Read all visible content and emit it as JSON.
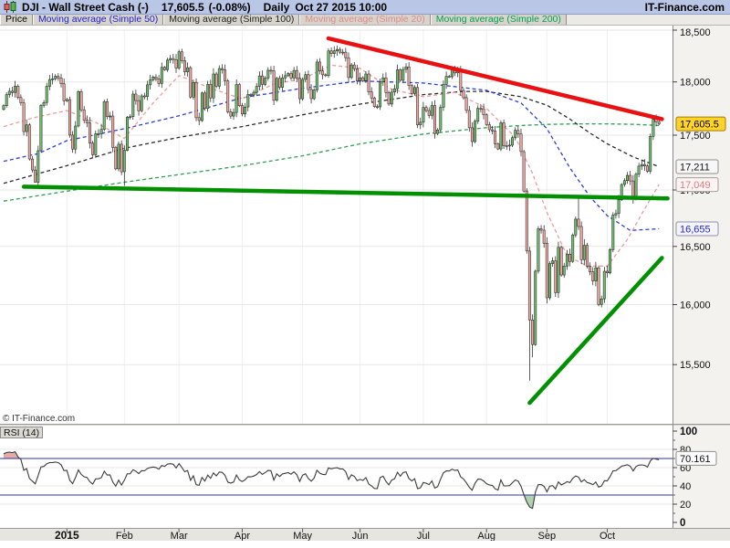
{
  "header": {
    "title": "DJI - Wall Street Cash (-)",
    "price": "17,605.5",
    "change": "(-0.08%)",
    "timeframe": "Daily",
    "datetime": "Oct 27 2015 10:00",
    "brand": "IT-Finance.com"
  },
  "watermark": "© IT-Finance.com",
  "tabs": [
    {
      "label": "Price",
      "color": "#000000"
    },
    {
      "label": "Moving average (Simple 50)",
      "color": "#2222cc"
    },
    {
      "label": "Moving average (Simple 100)",
      "color": "#222222"
    },
    {
      "label": "Moving average (Simple 20)",
      "color": "#e08a8a"
    },
    {
      "label": "Moving average (Simple 200)",
      "color": "#00a050"
    }
  ],
  "price_axis": {
    "tick_labels": [
      "18,500",
      "18,000",
      "17,500",
      "17,000",
      "16,500",
      "16,000",
      "15,500"
    ],
    "tick_values": [
      18500,
      18000,
      17500,
      17000,
      16500,
      16000,
      15500
    ],
    "badges": [
      {
        "label": "17,605.5",
        "value": 17605.5,
        "kind": "last-price",
        "bg": "#ffd42a",
        "border": "#a67c00",
        "text": "#000000"
      },
      {
        "label": "17,211",
        "value": 17211,
        "kind": "ma100",
        "bg": "#f7f7f7",
        "border": "#8f8f8f",
        "text": "#111111"
      },
      {
        "label": "17,049",
        "value": 17049,
        "kind": "ma20",
        "bg": "#fdf4f4",
        "border": "#a89a9a",
        "text": "#dd7d7d"
      },
      {
        "label": "16,655",
        "value": 16655,
        "kind": "ma50",
        "bg": "#f4f4fc",
        "border": "#8f8fa8",
        "text": "#2525cc"
      }
    ]
  },
  "x_axis": {
    "bold_label": "2015"
  },
  "rsi_panel": {
    "label": "RSI (14)",
    "current_label": "70.161",
    "current_value": 70.161,
    "tick_labels": [
      "100",
      "80",
      "60",
      "40",
      "20",
      "0"
    ],
    "tick_values": [
      100,
      80,
      60,
      40,
      20,
      0
    ],
    "overbought": 70,
    "oversold": 30
  },
  "colors": {
    "candle_up": "#6cbf6c",
    "candle_down": "#f2a6a0",
    "candle_outline": "#1a1a1a",
    "grid": "#e7e7e7",
    "vgrid": "#efefef",
    "axis_line": "#8a8a8a",
    "axis_bg": "#f3f2ef",
    "strip_bg": "#e7e5e0",
    "ma20": "#ef9a9a",
    "ma50": "#2b3fd6",
    "ma100": "#2b2b2b",
    "ma200": "#2f9e52",
    "trend_red": "#e81010",
    "trend_green": "#009000",
    "rsi_line": "#3a3a3a",
    "rsi_level": "#2f2fae",
    "rsi_ob_fill": "#e2aba3",
    "rsi_os_fill": "#aed3ae"
  },
  "chart_data": {
    "type": "candlestick",
    "symbol": "DJI - Wall Street Cash",
    "timeframe": "Daily",
    "session_note": "last bar intraday Oct 27 2015 10:00",
    "y_axis": {
      "scale": "log",
      "visible_range": [
        15100,
        18560
      ]
    },
    "months": [
      {
        "label": "",
        "closes": [
          17776,
          17880,
          17912,
          17900,
          17959,
          17852,
          17801,
          17533,
          17596,
          17281,
          17181,
          17069,
          17357,
          17778,
          17805,
          17959,
          18024,
          18030,
          18054,
          18038,
          17983,
          17823
        ]
      },
      {
        "label": "2015",
        "closes": [
          17833,
          17501,
          17372,
          17585,
          17908,
          17737,
          17640,
          17614,
          17427,
          17320,
          17512,
          17515,
          17554,
          17814,
          17673,
          17679,
          17387,
          17191,
          17417,
          17165
        ]
      },
      {
        "label": "Feb",
        "closes": [
          17361,
          17667,
          17673,
          17885,
          17824,
          17729,
          17868,
          17862,
          17972,
          18019,
          18047,
          18030,
          17986,
          18140,
          18117,
          18209,
          18225,
          18214,
          18133
        ]
      },
      {
        "label": "Mar",
        "closes": [
          18289,
          18203,
          18097,
          18136,
          17857,
          17996,
          17663,
          17636,
          17895,
          17749,
          17977,
          17849,
          18076,
          17959,
          18128,
          18116,
          18011,
          17718,
          17678,
          17712,
          17976,
          17776
        ]
      },
      {
        "label": "Apr",
        "closes": [
          17698,
          17763,
          17881,
          17875,
          17902,
          17958,
          18058,
          17977,
          18037,
          18112,
          18106,
          17826,
          18034,
          17949,
          18038,
          18059,
          18080,
          18038,
          18110,
          18036,
          17841
        ]
      },
      {
        "label": "May",
        "closes": [
          18024,
          18070,
          17928,
          17842,
          17924,
          18191,
          18105,
          18068,
          18060,
          18298,
          18272,
          18299,
          18312,
          18285,
          18286,
          18232,
          18042,
          18163,
          18126,
          18011
        ]
      },
      {
        "label": "Jun",
        "closes": [
          18040,
          18012,
          18076,
          17905,
          17849,
          17766,
          17764,
          18000,
          18039,
          17899,
          17791,
          17904,
          17936,
          18116,
          18015,
          18120,
          18144,
          17966,
          17890,
          17947,
          17596,
          17620
        ]
      },
      {
        "label": "Jul",
        "closes": [
          17758,
          17730,
          17684,
          17776,
          17515,
          17549,
          17760,
          17977,
          18053,
          18050,
          18120,
          18086,
          18100,
          17919,
          17851,
          17731,
          17569,
          17441,
          17630,
          17751,
          17746,
          17690
        ]
      },
      {
        "label": "Aug",
        "closes": [
          17598,
          17551,
          17540,
          17420,
          17373,
          17615,
          17403,
          17402,
          17408,
          17477,
          17545,
          17511,
          17349,
          16991,
          16460,
          15871,
          15666,
          16286,
          16655,
          16643,
          16528
        ]
      },
      {
        "label": "Sep",
        "closes": [
          16058,
          16351,
          16375,
          16102,
          16492,
          16253,
          16330,
          16433,
          16370,
          16600,
          16740,
          16675,
          16385,
          16510,
          16330,
          16280,
          16202,
          16315,
          16002,
          16049,
          16285
        ]
      },
      {
        "label": "Oct",
        "closes": [
          16272,
          16472,
          16776,
          16790,
          16912,
          17050,
          17084,
          17132,
          17082,
          16924,
          17142,
          17216,
          17231,
          17218,
          17169,
          17489,
          17647,
          17623,
          17605.5
        ]
      }
    ],
    "wick_overrides": [
      {
        "i": 11,
        "low": 17067
      },
      {
        "i": 42,
        "low": 17037
      },
      {
        "i": 116,
        "high": 18351
      },
      {
        "i": 150,
        "low": 17468
      },
      {
        "i": 156,
        "high": 18137
      },
      {
        "i": 183,
        "low": 15370
      },
      {
        "i": 184,
        "low": 15560
      },
      {
        "i": 200,
        "high": 16933
      }
    ],
    "moving_averages": [
      {
        "name": "Simple 200",
        "key": "ma200",
        "anchors": [
          [
            0,
            16900
          ],
          [
            22,
            16990
          ],
          [
            42,
            17070
          ],
          [
            61,
            17140
          ],
          [
            83,
            17220
          ],
          [
            104,
            17310
          ],
          [
            124,
            17420
          ],
          [
            146,
            17510
          ],
          [
            168,
            17570
          ],
          [
            180,
            17590
          ],
          [
            189,
            17600
          ],
          [
            200,
            17605
          ],
          [
            210,
            17605
          ],
          [
            220,
            17600
          ],
          [
            228,
            17590
          ]
        ]
      },
      {
        "name": "Simple 100",
        "key": "ma100",
        "anchors": [
          [
            0,
            17060
          ],
          [
            22,
            17220
          ],
          [
            42,
            17380
          ],
          [
            61,
            17480
          ],
          [
            83,
            17580
          ],
          [
            104,
            17690
          ],
          [
            124,
            17790
          ],
          [
            146,
            17880
          ],
          [
            160,
            17910
          ],
          [
            168,
            17910
          ],
          [
            180,
            17860
          ],
          [
            189,
            17780
          ],
          [
            197,
            17650
          ],
          [
            204,
            17520
          ],
          [
            210,
            17420
          ],
          [
            219,
            17300
          ],
          [
            228,
            17211
          ]
        ]
      },
      {
        "name": "Simple 50",
        "key": "ma50",
        "anchors": [
          [
            0,
            17260
          ],
          [
            12,
            17330
          ],
          [
            22,
            17450
          ],
          [
            42,
            17560
          ],
          [
            61,
            17680
          ],
          [
            83,
            17850
          ],
          [
            104,
            17940
          ],
          [
            124,
            18010
          ],
          [
            146,
            17990
          ],
          [
            168,
            17920
          ],
          [
            180,
            17800
          ],
          [
            189,
            17560
          ],
          [
            197,
            17200
          ],
          [
            204,
            16940
          ],
          [
            210,
            16770
          ],
          [
            218,
            16640
          ],
          [
            228,
            16655
          ]
        ]
      },
      {
        "name": "Simple 20",
        "key": "ma20",
        "anchors": [
          [
            0,
            17580
          ],
          [
            10,
            17660
          ],
          [
            22,
            17730
          ],
          [
            32,
            17620
          ],
          [
            42,
            17470
          ],
          [
            52,
            17800
          ],
          [
            61,
            18060
          ],
          [
            72,
            17940
          ],
          [
            83,
            17840
          ],
          [
            94,
            17980
          ],
          [
            104,
            18030
          ],
          [
            114,
            18160
          ],
          [
            124,
            18130
          ],
          [
            135,
            17930
          ],
          [
            146,
            17860
          ],
          [
            157,
            17900
          ],
          [
            168,
            17750
          ],
          [
            178,
            17480
          ],
          [
            184,
            17150
          ],
          [
            189,
            16800
          ],
          [
            196,
            16420
          ],
          [
            203,
            16330
          ],
          [
            210,
            16330
          ],
          [
            217,
            16560
          ],
          [
            223,
            16830
          ],
          [
            228,
            17049
          ]
        ]
      }
    ],
    "trendlines": [
      {
        "name": "descending-resistance",
        "color_key": "trend_red",
        "from": [
          113,
          18420
        ],
        "to": [
          229,
          17650
        ],
        "width": 4.5
      },
      {
        "name": "horizontal-support",
        "color_key": "trend_green",
        "from": [
          7,
          17030
        ],
        "to": [
          231,
          16925
        ],
        "width": 4.5
      },
      {
        "name": "ascending-support",
        "color_key": "trend_green",
        "from": [
          183,
          15190
        ],
        "to": [
          229,
          16400
        ],
        "width": 4.5
      }
    ],
    "rsi": {
      "period": 14,
      "current": 70.161,
      "overbought": 70,
      "oversold": 30
    }
  }
}
